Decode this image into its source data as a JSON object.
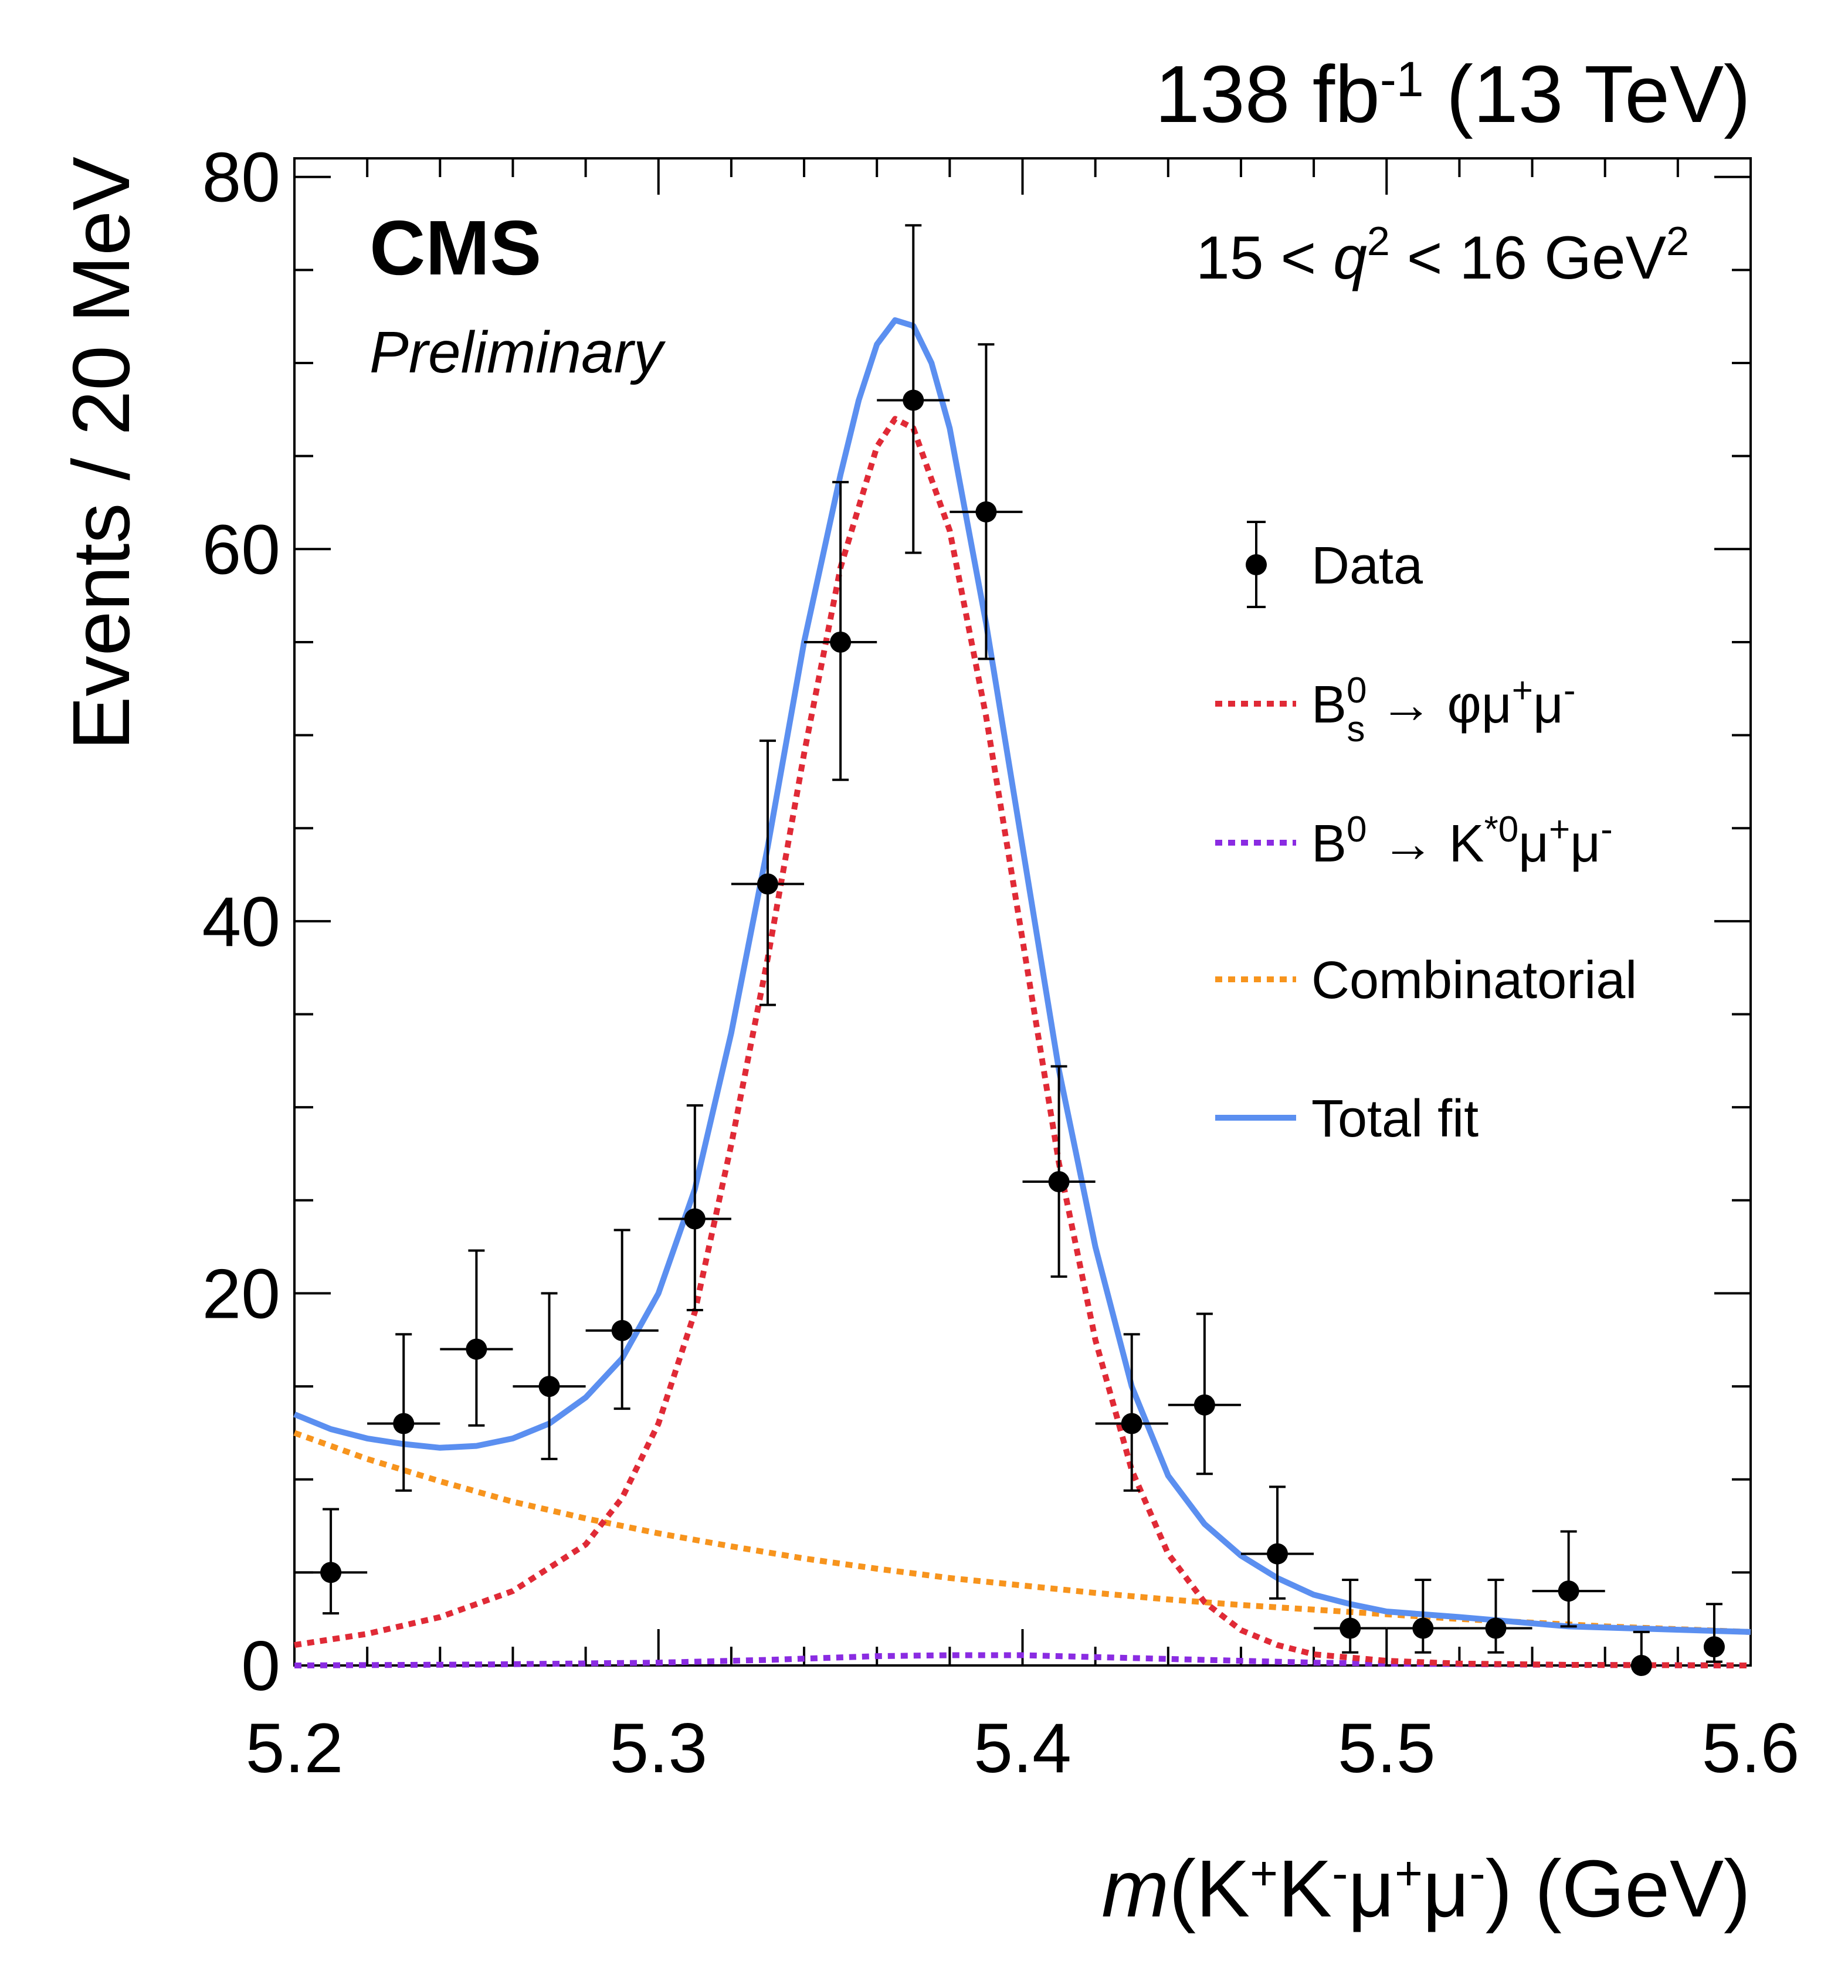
{
  "chart_data": {
    "type": "line",
    "lumi_label": "138 fb-1 (13 TeV)",
    "cms_label": "CMS",
    "preliminary_label": "Preliminary",
    "selection_label": "15 < q2 < 16 GeV2",
    "xlabel": "m(K+K-μ+μ-) (GeV)",
    "ylabel": "Events / 20 MeV",
    "xlim": [
      5.2,
      5.6
    ],
    "ylim": [
      0,
      81
    ],
    "x_ticks": [
      "5.2",
      "5.3",
      "5.4",
      "5.5",
      "5.6"
    ],
    "y_ticks": [
      "0",
      "20",
      "40",
      "60",
      "80"
    ],
    "colors": {
      "data": "#000000",
      "bs_signal": "#e02a36",
      "b0_background": "#8a2be2",
      "combinatorial": "#f7941d",
      "total_fit": "#5b8ff0"
    },
    "legend": [
      "Data",
      "Bs0 → φμ+μ-",
      "B0 → K*0μ+μ-",
      "Combinatorial",
      "Total fit"
    ],
    "data_points": [
      {
        "x": 5.21,
        "y": 5,
        "yerr_lo": 2.2,
        "yerr_hi": 3.4,
        "xerr": 0.01
      },
      {
        "x": 5.23,
        "y": 13,
        "yerr_lo": 3.6,
        "yerr_hi": 4.8,
        "xerr": 0.01
      },
      {
        "x": 5.25,
        "y": 17,
        "yerr_lo": 4.1,
        "yerr_hi": 5.3,
        "xerr": 0.01
      },
      {
        "x": 5.27,
        "y": 15,
        "yerr_lo": 3.9,
        "yerr_hi": 5.0,
        "xerr": 0.01
      },
      {
        "x": 5.29,
        "y": 18,
        "yerr_lo": 4.2,
        "yerr_hi": 5.4,
        "xerr": 0.01
      },
      {
        "x": 5.31,
        "y": 24,
        "yerr_lo": 4.9,
        "yerr_hi": 6.1,
        "xerr": 0.01
      },
      {
        "x": 5.33,
        "y": 42,
        "yerr_lo": 6.5,
        "yerr_hi": 7.7,
        "xerr": 0.01
      },
      {
        "x": 5.35,
        "y": 55,
        "yerr_lo": 7.4,
        "yerr_hi": 8.6,
        "xerr": 0.01
      },
      {
        "x": 5.37,
        "y": 68,
        "yerr_lo": 8.2,
        "yerr_hi": 9.4,
        "xerr": 0.01
      },
      {
        "x": 5.39,
        "y": 62,
        "yerr_lo": 7.9,
        "yerr_hi": 9.0,
        "xerr": 0.01
      },
      {
        "x": 5.41,
        "y": 26,
        "yerr_lo": 5.1,
        "yerr_hi": 6.2,
        "xerr": 0.01
      },
      {
        "x": 5.43,
        "y": 13,
        "yerr_lo": 3.6,
        "yerr_hi": 4.8,
        "xerr": 0.01
      },
      {
        "x": 5.45,
        "y": 14,
        "yerr_lo": 3.7,
        "yerr_hi": 4.9,
        "xerr": 0.01
      },
      {
        "x": 5.47,
        "y": 6,
        "yerr_lo": 2.4,
        "yerr_hi": 3.6,
        "xerr": 0.01
      },
      {
        "x": 5.49,
        "y": 2,
        "yerr_lo": 1.3,
        "yerr_hi": 2.6,
        "xerr": 0.01
      },
      {
        "x": 5.51,
        "y": 2,
        "yerr_lo": 1.3,
        "yerr_hi": 2.6,
        "xerr": 0.01
      },
      {
        "x": 5.53,
        "y": 2,
        "yerr_lo": 1.3,
        "yerr_hi": 2.6,
        "xerr": 0.01
      },
      {
        "x": 5.55,
        "y": 4,
        "yerr_lo": 1.9,
        "yerr_hi": 3.2,
        "xerr": 0.01
      },
      {
        "x": 5.57,
        "y": 0,
        "yerr_lo": 0,
        "yerr_hi": 1.8,
        "xerr": 0.0
      },
      {
        "x": 5.59,
        "y": 1,
        "yerr_lo": 0.8,
        "yerr_hi": 2.3,
        "xerr": 0.0
      }
    ],
    "series": [
      {
        "name": "Bs0 → φμ+μ-",
        "style": "dotted",
        "x": [
          5.2,
          5.22,
          5.24,
          5.26,
          5.28,
          5.29,
          5.3,
          5.31,
          5.32,
          5.33,
          5.34,
          5.35,
          5.36,
          5.365,
          5.37,
          5.38,
          5.39,
          5.4,
          5.41,
          5.42,
          5.43,
          5.44,
          5.45,
          5.46,
          5.47,
          5.48,
          5.5,
          5.52,
          5.55,
          5.6
        ],
        "y": [
          1.1,
          1.7,
          2.6,
          4.0,
          6.5,
          9.0,
          13.0,
          19.0,
          28.0,
          38.0,
          49.0,
          59.0,
          65.5,
          67.0,
          66.5,
          61.0,
          51.0,
          39.0,
          27.0,
          17.5,
          10.5,
          6.0,
          3.4,
          1.9,
          1.1,
          0.6,
          0.25,
          0.1,
          0.03,
          0.0
        ]
      },
      {
        "name": "B0 → K*0μ+μ-",
        "style": "dotted",
        "x": [
          5.2,
          5.25,
          5.3,
          5.33,
          5.36,
          5.38,
          5.4,
          5.42,
          5.45,
          5.48,
          5.5,
          5.55,
          5.6
        ],
        "y": [
          0.0,
          0.05,
          0.15,
          0.3,
          0.5,
          0.55,
          0.55,
          0.45,
          0.3,
          0.15,
          0.1,
          0.03,
          0.0
        ]
      },
      {
        "name": "Combinatorial",
        "style": "dotted",
        "x": [
          5.2,
          5.22,
          5.24,
          5.26,
          5.28,
          5.3,
          5.32,
          5.34,
          5.36,
          5.38,
          5.4,
          5.42,
          5.44,
          5.46,
          5.48,
          5.5,
          5.52,
          5.54,
          5.56,
          5.58,
          5.6
        ],
        "y": [
          12.5,
          11.1,
          9.9,
          8.8,
          7.9,
          7.1,
          6.4,
          5.75,
          5.2,
          4.7,
          4.3,
          3.9,
          3.55,
          3.25,
          3.0,
          2.75,
          2.5,
          2.3,
          2.1,
          1.95,
          1.8
        ]
      },
      {
        "name": "Total fit",
        "style": "solid",
        "x": [
          5.2,
          5.21,
          5.22,
          5.23,
          5.24,
          5.25,
          5.26,
          5.27,
          5.28,
          5.29,
          5.3,
          5.31,
          5.32,
          5.33,
          5.34,
          5.35,
          5.355,
          5.36,
          5.365,
          5.37,
          5.375,
          5.38,
          5.39,
          5.4,
          5.41,
          5.42,
          5.43,
          5.44,
          5.45,
          5.46,
          5.47,
          5.48,
          5.49,
          5.5,
          5.52,
          5.55,
          5.6
        ],
        "y": [
          13.5,
          12.7,
          12.2,
          11.9,
          11.7,
          11.8,
          12.2,
          13.0,
          14.4,
          16.5,
          20.0,
          25.6,
          34.0,
          44.0,
          55.0,
          64.0,
          68.0,
          71.0,
          72.3,
          72.0,
          70.0,
          66.5,
          56.0,
          44.0,
          32.0,
          22.5,
          15.0,
          10.2,
          7.6,
          5.9,
          4.7,
          3.8,
          3.3,
          2.9,
          2.6,
          2.1,
          1.8
        ]
      }
    ]
  }
}
